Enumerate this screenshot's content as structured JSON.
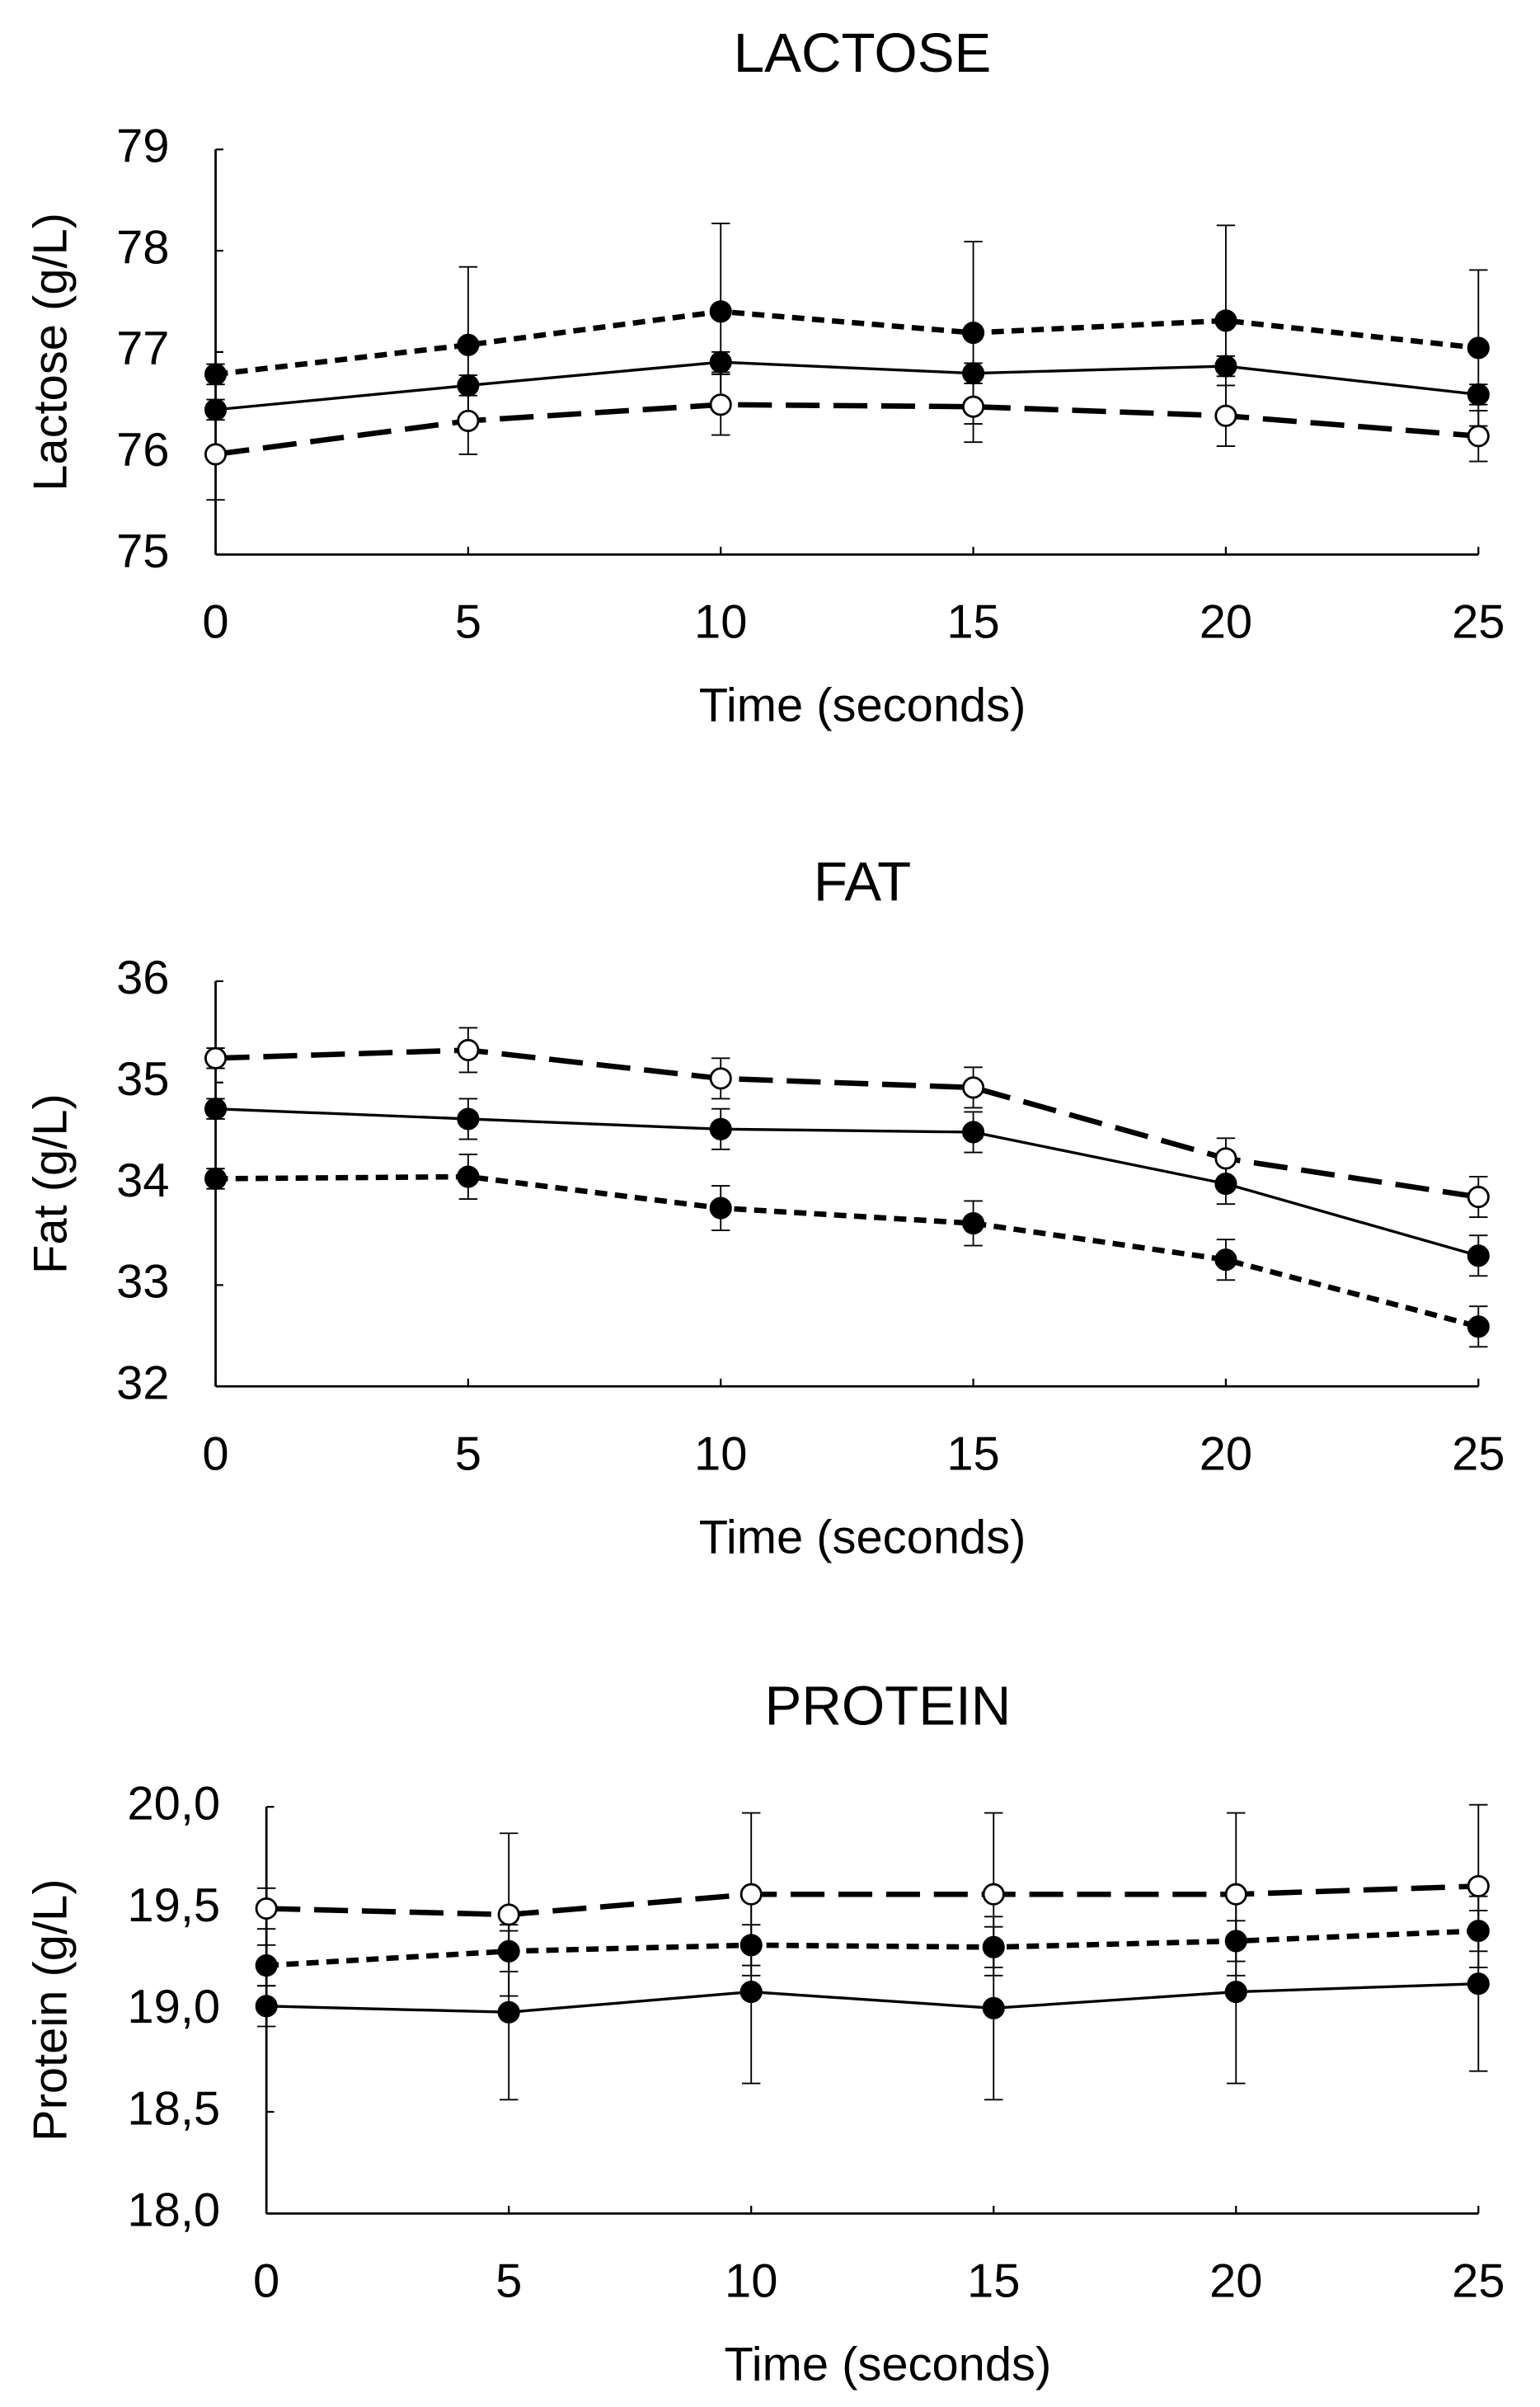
{
  "chart_data": [
    {
      "type": "line",
      "title": "LACTOSE",
      "x_label": "Time (seconds)",
      "y_label": "Lactose (g/L)",
      "x": [
        0,
        5,
        10,
        15,
        20,
        25
      ],
      "xlim": [
        0,
        25
      ],
      "xticks": [
        0,
        5,
        10,
        15,
        20,
        25
      ],
      "ylim": [
        75,
        79
      ],
      "yticks": [
        75,
        76,
        77,
        78,
        79
      ],
      "series": [
        {
          "color": "#000000",
          "dash": "dotted",
          "marker": "filled",
          "values": [
            76.78,
            77.07,
            77.4,
            77.19,
            77.31,
            77.04
          ],
          "errors": [
            0.1,
            0.77,
            0.87,
            0.9,
            0.94,
            0.77
          ]
        },
        {
          "color": "#000000",
          "dash": "solid",
          "marker": "filled",
          "values": [
            76.43,
            76.67,
            76.9,
            76.79,
            76.86,
            76.58
          ],
          "errors": [
            0.1,
            0.1,
            0.1,
            0.1,
            0.1,
            0.1
          ]
        },
        {
          "color": "#000000",
          "dash": "dashed",
          "marker": "open",
          "values": [
            75.99,
            76.32,
            76.48,
            76.46,
            76.37,
            76.17
          ],
          "errors": [
            0.45,
            0.33,
            0.3,
            0.35,
            0.3,
            0.25
          ]
        }
      ]
    },
    {
      "type": "line",
      "title": "FAT",
      "x_label": "Time (seconds)",
      "y_label": "Fat (g/L)",
      "x": [
        0,
        5,
        10,
        15,
        20,
        25
      ],
      "xlim": [
        0,
        25
      ],
      "xticks": [
        0,
        5,
        10,
        15,
        20,
        25
      ],
      "ylim": [
        32,
        36
      ],
      "yticks": [
        32,
        33,
        34,
        35,
        36
      ],
      "series": [
        {
          "color": "#000000",
          "dash": "dashed",
          "marker": "open",
          "values": [
            35.24,
            35.32,
            35.04,
            34.95,
            34.25,
            33.87
          ],
          "errors": [
            0.1,
            0.22,
            0.2,
            0.2,
            0.2,
            0.2
          ]
        },
        {
          "color": "#000000",
          "dash": "solid",
          "marker": "filled",
          "values": [
            34.74,
            34.64,
            34.54,
            34.51,
            34.0,
            33.29
          ],
          "errors": [
            0.1,
            0.2,
            0.2,
            0.2,
            0.2,
            0.2
          ]
        },
        {
          "color": "#000000",
          "dash": "dotted",
          "marker": "filled",
          "values": [
            34.05,
            34.07,
            33.76,
            33.61,
            33.25,
            32.59
          ],
          "errors": [
            0.1,
            0.22,
            0.22,
            0.22,
            0.2,
            0.2
          ]
        }
      ]
    },
    {
      "type": "line",
      "title": "PROTEIN",
      "x_label": "Time (seconds)",
      "y_label": "Protein (g/L)",
      "x": [
        0,
        5,
        10,
        15,
        20,
        25
      ],
      "xlim": [
        0,
        25
      ],
      "xticks": [
        0,
        5,
        10,
        15,
        20,
        25
      ],
      "ylim": [
        18,
        20
      ],
      "yticks": [
        {
          "value": 18,
          "label": "18,0"
        },
        {
          "value": 18.5,
          "label": "18,5"
        },
        {
          "value": 19,
          "label": "19,0"
        },
        {
          "value": 19.5,
          "label": "19,5"
        },
        {
          "value": 20,
          "label": "20,0"
        }
      ],
      "series": [
        {
          "color": "#000000",
          "dash": "dashed",
          "marker": "open",
          "values": [
            19.5,
            19.47,
            19.57,
            19.57,
            19.57,
            19.61
          ],
          "errors": [
            0.1,
            0.4,
            0.4,
            0.4,
            0.4,
            0.4
          ]
        },
        {
          "color": "#000000",
          "dash": "dotted",
          "marker": "filled",
          "values": [
            19.22,
            19.29,
            19.32,
            19.31,
            19.34,
            19.39
          ],
          "errors": [
            0.1,
            0.1,
            0.1,
            0.1,
            0.1,
            0.1
          ]
        },
        {
          "color": "#000000",
          "dash": "solid",
          "marker": "filled",
          "values": [
            19.02,
            18.99,
            19.09,
            19.01,
            19.09,
            19.13
          ],
          "errors": [
            0.1,
            0.43,
            0.45,
            0.45,
            0.45,
            0.43
          ]
        }
      ]
    }
  ]
}
